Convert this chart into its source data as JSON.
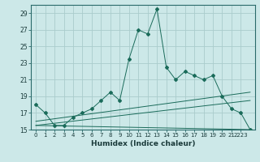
{
  "title": "",
  "xlabel": "Humidex (Indice chaleur)",
  "background_color": "#cce8e8",
  "grid_color": "#aacccc",
  "line_color": "#1a6b5a",
  "xlim": [
    -0.5,
    23.5
  ],
  "ylim": [
    15,
    30
  ],
  "yticks": [
    15,
    17,
    19,
    21,
    23,
    25,
    27,
    29
  ],
  "xtick_positions": [
    0,
    1,
    2,
    3,
    4,
    5,
    6,
    7,
    8,
    9,
    10,
    11,
    12,
    13,
    14,
    15,
    16,
    17,
    18,
    19,
    20,
    21,
    22
  ],
  "xtick_labels": [
    "0",
    "1",
    "2",
    "3",
    "4",
    "5",
    "6",
    "7",
    "8",
    "9",
    "10",
    "11",
    "12",
    "13",
    "14",
    "15",
    "16",
    "17",
    "18",
    "19",
    "20",
    "21",
    "2223"
  ],
  "series1_x": [
    0,
    1,
    2,
    3,
    4,
    5,
    6,
    7,
    8,
    9,
    10,
    11,
    12,
    13,
    14,
    15,
    16,
    17,
    18,
    19,
    20,
    21,
    22,
    23
  ],
  "series1_y": [
    18.0,
    17.0,
    15.5,
    15.5,
    16.5,
    17.0,
    17.5,
    18.5,
    19.5,
    18.5,
    23.5,
    27.0,
    26.5,
    29.5,
    22.5,
    21.0,
    22.0,
    21.5,
    21.0,
    21.5,
    19.0,
    17.5,
    17.0,
    15.0
  ],
  "series2_x": [
    0,
    23
  ],
  "series2_y": [
    15.5,
    15.0
  ],
  "series3_x": [
    0,
    23
  ],
  "series3_y": [
    16.0,
    19.5
  ],
  "series4_x": [
    0,
    23
  ],
  "series4_y": [
    15.5,
    18.5
  ],
  "figsize": [
    3.2,
    2.0
  ],
  "dpi": 100
}
